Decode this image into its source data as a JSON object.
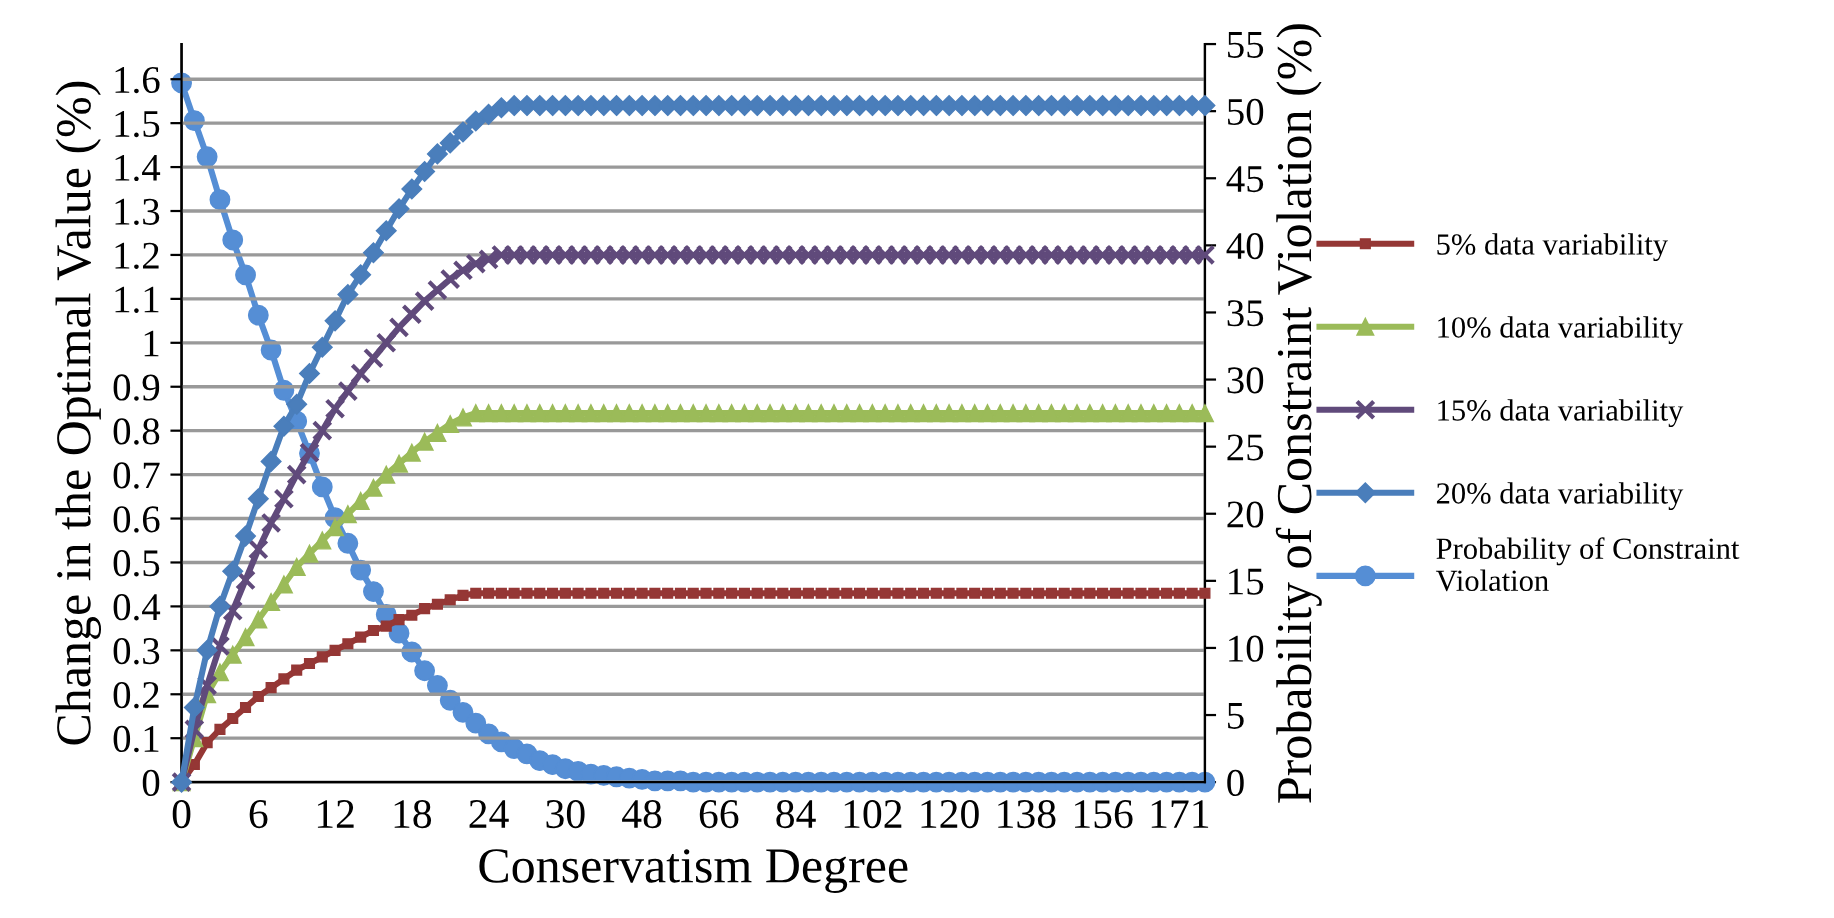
{
  "chart_data": {
    "type": "line",
    "xlabel": "Conservatism Degree",
    "ylabel": "Change in the Optimal Value (%)",
    "y2label": "Probability of Constraint Violation (%)",
    "categories": [
      "0",
      null,
      null,
      null,
      null,
      null,
      "6",
      null,
      null,
      null,
      null,
      null,
      "12",
      null,
      null,
      null,
      null,
      null,
      "18",
      null,
      null,
      null,
      null,
      null,
      "24",
      null,
      null,
      null,
      null,
      null,
      "30",
      null,
      null,
      null,
      null,
      null,
      "48",
      null,
      null,
      null,
      null,
      null,
      "66",
      null,
      null,
      null,
      null,
      null,
      "84",
      null,
      null,
      null,
      null,
      null,
      "102",
      null,
      null,
      null,
      null,
      null,
      "120",
      null,
      null,
      null,
      null,
      null,
      "138",
      null,
      null,
      null,
      null,
      null,
      "156",
      null,
      null,
      null,
      null,
      null,
      "171",
      null,
      null
    ],
    "ylim": [
      0,
      1.68
    ],
    "yticks": [
      0,
      0.1,
      0.2,
      0.3,
      0.4,
      0.5,
      0.6,
      0.7,
      0.8,
      0.9,
      1,
      1.1,
      1.2,
      1.3,
      1.4,
      1.5,
      1.6
    ],
    "y2lim": [
      0,
      55
    ],
    "y2ticks": [
      0,
      5,
      10,
      15,
      20,
      25,
      30,
      35,
      40,
      45,
      50,
      55
    ],
    "grid": "y",
    "legend": "right",
    "line_style": "solid",
    "series": [
      {
        "name": "5% data variability",
        "color": "#953735",
        "marker": "square",
        "values": [
          0,
          0.04,
          0.09,
          0.12,
          0.145,
          0.17,
          0.195,
          0.215,
          0.235,
          0.255,
          0.27,
          0.285,
          0.3,
          0.315,
          0.33,
          0.345,
          0.355,
          0.37,
          0.38,
          0.395,
          0.405,
          0.415,
          0.425,
          0.43,
          0.43,
          0.43,
          0.43,
          0.43,
          0.43,
          0.43,
          0.43,
          0.43,
          0.43,
          0.43,
          0.43,
          0.43,
          0.43,
          0.43,
          0.43,
          0.43,
          0.43,
          0.43,
          0.43,
          0.43,
          0.43,
          0.43,
          0.43,
          0.43,
          0.43,
          0.43,
          0.43,
          0.43,
          0.43,
          0.43,
          0.43,
          0.43,
          0.43,
          0.43,
          0.43,
          0.43,
          0.43,
          0.43,
          0.43,
          0.43,
          0.43,
          0.43,
          0.43,
          0.43,
          0.43,
          0.43,
          0.43,
          0.43,
          0.43,
          0.43,
          0.43,
          0.43,
          0.43,
          0.43,
          0.43,
          0.43,
          0.43
        ]
      },
      {
        "name": "10% data variability",
        "color": "#9bbb59",
        "marker": "triangle",
        "values": [
          0,
          0.1,
          0.2,
          0.25,
          0.29,
          0.33,
          0.37,
          0.41,
          0.45,
          0.49,
          0.52,
          0.55,
          0.58,
          0.61,
          0.64,
          0.67,
          0.7,
          0.725,
          0.75,
          0.775,
          0.795,
          0.815,
          0.83,
          0.84,
          0.84,
          0.84,
          0.84,
          0.84,
          0.84,
          0.84,
          0.84,
          0.84,
          0.84,
          0.84,
          0.84,
          0.84,
          0.84,
          0.84,
          0.84,
          0.84,
          0.84,
          0.84,
          0.84,
          0.84,
          0.84,
          0.84,
          0.84,
          0.84,
          0.84,
          0.84,
          0.84,
          0.84,
          0.84,
          0.84,
          0.84,
          0.84,
          0.84,
          0.84,
          0.84,
          0.84,
          0.84,
          0.84,
          0.84,
          0.84,
          0.84,
          0.84,
          0.84,
          0.84,
          0.84,
          0.84,
          0.84,
          0.84,
          0.84,
          0.84,
          0.84,
          0.84,
          0.84,
          0.84,
          0.84,
          0.84,
          0.84
        ]
      },
      {
        "name": "15% data variability",
        "color": "#604a7b",
        "marker": "cross",
        "values": [
          0,
          0.12,
          0.22,
          0.31,
          0.39,
          0.46,
          0.53,
          0.59,
          0.645,
          0.7,
          0.75,
          0.8,
          0.85,
          0.89,
          0.93,
          0.965,
          1.0,
          1.035,
          1.065,
          1.095,
          1.12,
          1.145,
          1.165,
          1.18,
          1.19,
          1.2,
          1.2,
          1.2,
          1.2,
          1.2,
          1.2,
          1.2,
          1.2,
          1.2,
          1.2,
          1.2,
          1.2,
          1.2,
          1.2,
          1.2,
          1.2,
          1.2,
          1.2,
          1.2,
          1.2,
          1.2,
          1.2,
          1.2,
          1.2,
          1.2,
          1.2,
          1.2,
          1.2,
          1.2,
          1.2,
          1.2,
          1.2,
          1.2,
          1.2,
          1.2,
          1.2,
          1.2,
          1.2,
          1.2,
          1.2,
          1.2,
          1.2,
          1.2,
          1.2,
          1.2,
          1.2,
          1.2,
          1.2,
          1.2,
          1.2,
          1.2,
          1.2,
          1.2,
          1.2,
          1.2,
          1.2
        ]
      },
      {
        "name": "20% data variability",
        "color": "#4a7ebb",
        "marker": "diamond",
        "values": [
          0,
          0.17,
          0.3,
          0.4,
          0.48,
          0.56,
          0.645,
          0.73,
          0.81,
          0.86,
          0.93,
          0.99,
          1.05,
          1.11,
          1.155,
          1.205,
          1.255,
          1.305,
          1.35,
          1.39,
          1.43,
          1.455,
          1.48,
          1.505,
          1.52,
          1.535,
          1.54,
          1.54,
          1.54,
          1.54,
          1.54,
          1.54,
          1.54,
          1.54,
          1.54,
          1.54,
          1.54,
          1.54,
          1.54,
          1.54,
          1.54,
          1.54,
          1.54,
          1.54,
          1.54,
          1.54,
          1.54,
          1.54,
          1.54,
          1.54,
          1.54,
          1.54,
          1.54,
          1.54,
          1.54,
          1.54,
          1.54,
          1.54,
          1.54,
          1.54,
          1.54,
          1.54,
          1.54,
          1.54,
          1.54,
          1.54,
          1.54,
          1.54,
          1.54,
          1.54,
          1.54,
          1.54,
          1.54,
          1.54,
          1.54,
          1.54,
          1.54,
          1.54,
          1.54,
          1.54,
          1.54
        ]
      },
      {
        "name": "Probability of Constraint Violation",
        "color": "#558ed5",
        "marker": "circle",
        "axis": "y2",
        "values": [
          52.1,
          49.3,
          46.6,
          43.4,
          40.4,
          37.8,
          34.8,
          32.2,
          29.2,
          26.9,
          24.5,
          22.0,
          19.7,
          17.8,
          15.8,
          14.2,
          12.5,
          11.1,
          9.7,
          8.3,
          7.2,
          6.1,
          5.2,
          4.4,
          3.6,
          3.0,
          2.5,
          2.1,
          1.6,
          1.3,
          1.0,
          0.8,
          0.6,
          0.5,
          0.4,
          0.3,
          0.2,
          0.1,
          0.1,
          0.1,
          0,
          0,
          0,
          0,
          0,
          0,
          0,
          0,
          0,
          0,
          0,
          0,
          0,
          0,
          0,
          0,
          0,
          0,
          0,
          0,
          0,
          0,
          0,
          0,
          0,
          0,
          0,
          0,
          0,
          0,
          0,
          0,
          0,
          0,
          0,
          0,
          0,
          0,
          0,
          0,
          0
        ]
      }
    ]
  }
}
